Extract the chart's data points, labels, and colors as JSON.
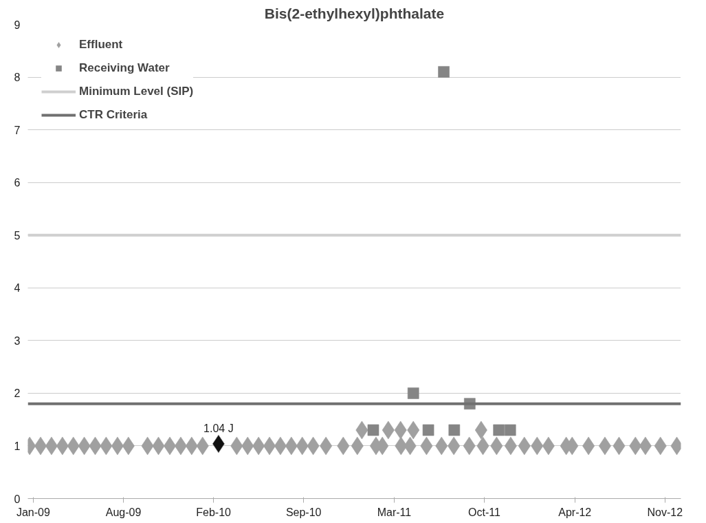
{
  "chart_data": {
    "type": "scatter",
    "title": "Bis(2-ethylhexyl)phthalate",
    "xlim": [
      "2009-01-05",
      "2012-12-10"
    ],
    "xticks": [
      {
        "value": "2009-01-17",
        "label": "Jan-09"
      },
      {
        "value": "2009-08-03",
        "label": "Aug-09"
      },
      {
        "value": "2010-02-17",
        "label": "Feb-10"
      },
      {
        "value": "2010-09-03",
        "label": "Sep-10"
      },
      {
        "value": "2011-03-21",
        "label": "Mar-11"
      },
      {
        "value": "2011-10-05",
        "label": "Oct-11"
      },
      {
        "value": "2012-04-21",
        "label": "Apr-12"
      },
      {
        "value": "2012-11-05",
        "label": "Nov-12"
      }
    ],
    "ylim": [
      0,
      9
    ],
    "yticks": [
      0,
      1,
      2,
      3,
      4,
      5,
      6,
      7,
      8,
      9
    ],
    "grid": "y",
    "legend": "top left",
    "series": [
      {
        "name": "Effluent",
        "marker": "diamond",
        "color": "#a0a0a0",
        "x": [
          "2009-01-09",
          "2009-02-02",
          "2009-02-26",
          "2009-03-22",
          "2009-04-15",
          "2009-05-09",
          "2009-06-02",
          "2009-06-26",
          "2009-07-21",
          "2009-08-14",
          "2009-09-25",
          "2009-10-19",
          "2009-11-13",
          "2009-12-07",
          "2009-12-31",
          "2010-01-24",
          "2010-02-28",
          "2010-04-09",
          "2010-05-03",
          "2010-05-27",
          "2010-06-20",
          "2010-07-14",
          "2010-08-07",
          "2010-08-31",
          "2010-09-24",
          "2010-10-22",
          "2010-11-29",
          "2010-12-30",
          "2011-01-09",
          "2011-02-09",
          "2011-02-23",
          "2011-03-08",
          "2011-04-04",
          "2011-04-05",
          "2011-04-25",
          "2011-05-02",
          "2011-05-31",
          "2011-07-03",
          "2011-07-30",
          "2011-09-02",
          "2011-09-28",
          "2011-10-02",
          "2011-11-01",
          "2011-12-02",
          "2012-01-01",
          "2012-01-29",
          "2012-02-23",
          "2012-04-02",
          "2012-04-15",
          "2012-05-21",
          "2012-06-26",
          "2012-07-27",
          "2012-09-01",
          "2012-09-23",
          "2012-10-26",
          "2012-12-01"
        ],
        "values": [
          1,
          1,
          1,
          1,
          1,
          1,
          1,
          1,
          1,
          1,
          1,
          1,
          1,
          1,
          1,
          1,
          1.04,
          1,
          1,
          1,
          1,
          1,
          1,
          1,
          1,
          1,
          1,
          1,
          1.3,
          1,
          1,
          1.3,
          1.3,
          1,
          1,
          1.3,
          1,
          1,
          1,
          1,
          1.3,
          1,
          1,
          1,
          1,
          1,
          1,
          1,
          1,
          1,
          1,
          1,
          1,
          1,
          1,
          1
        ],
        "colors": [
          "#a0a0a0",
          "#a0a0a0",
          "#a0a0a0",
          "#a0a0a0",
          "#a0a0a0",
          "#a0a0a0",
          "#a0a0a0",
          "#a0a0a0",
          "#a0a0a0",
          "#a0a0a0",
          "#a0a0a0",
          "#a0a0a0",
          "#a0a0a0",
          "#a0a0a0",
          "#a0a0a0",
          "#a0a0a0",
          "#111111",
          "#a0a0a0",
          "#a0a0a0",
          "#a0a0a0",
          "#a0a0a0",
          "#a0a0a0",
          "#a0a0a0",
          "#a0a0a0",
          "#a0a0a0",
          "#a0a0a0",
          "#a0a0a0",
          "#a0a0a0",
          "#a0a0a0",
          "#a0a0a0",
          "#a0a0a0",
          "#a0a0a0",
          "#a0a0a0",
          "#a0a0a0",
          "#a0a0a0",
          "#a0a0a0",
          "#a0a0a0",
          "#a0a0a0",
          "#a0a0a0",
          "#a0a0a0",
          "#a0a0a0",
          "#a0a0a0",
          "#a0a0a0",
          "#a0a0a0",
          "#a0a0a0",
          "#a0a0a0",
          "#a0a0a0",
          "#a0a0a0",
          "#a0a0a0",
          "#a0a0a0",
          "#a0a0a0",
          "#a0a0a0",
          "#a0a0a0",
          "#a0a0a0",
          "#a0a0a0",
          "#a0a0a0"
        ],
        "value_labels": [
          null,
          null,
          null,
          null,
          null,
          null,
          null,
          null,
          null,
          null,
          null,
          null,
          null,
          null,
          null,
          null,
          "1.04 J",
          null,
          null,
          null,
          null,
          null,
          null,
          null,
          null,
          null,
          null,
          null,
          null,
          null,
          null,
          null,
          null,
          null,
          null,
          null,
          null,
          null,
          null,
          null,
          null,
          null,
          null,
          null,
          null,
          null,
          null,
          null,
          null,
          null,
          null,
          null,
          null,
          null,
          null,
          null
        ]
      },
      {
        "name": "Receiving Water",
        "marker": "square",
        "color": "#858585",
        "x": [
          "2011-02-03",
          "2011-05-02",
          "2011-06-04",
          "2011-07-08",
          "2011-07-31",
          "2011-09-03",
          "2011-11-06",
          "2011-12-01"
        ],
        "values": [
          1.3,
          2.0,
          1.3,
          8.1,
          1.3,
          1.8,
          1.3,
          1.3
        ]
      }
    ],
    "ref_lines": [
      {
        "axis": "y",
        "value": 5,
        "label": "Minimum Level (SIP)",
        "color": "#cfcfcf"
      },
      {
        "axis": "y",
        "value": 1.8,
        "label": "CTR Criteria",
        "color": "#707070"
      }
    ]
  }
}
